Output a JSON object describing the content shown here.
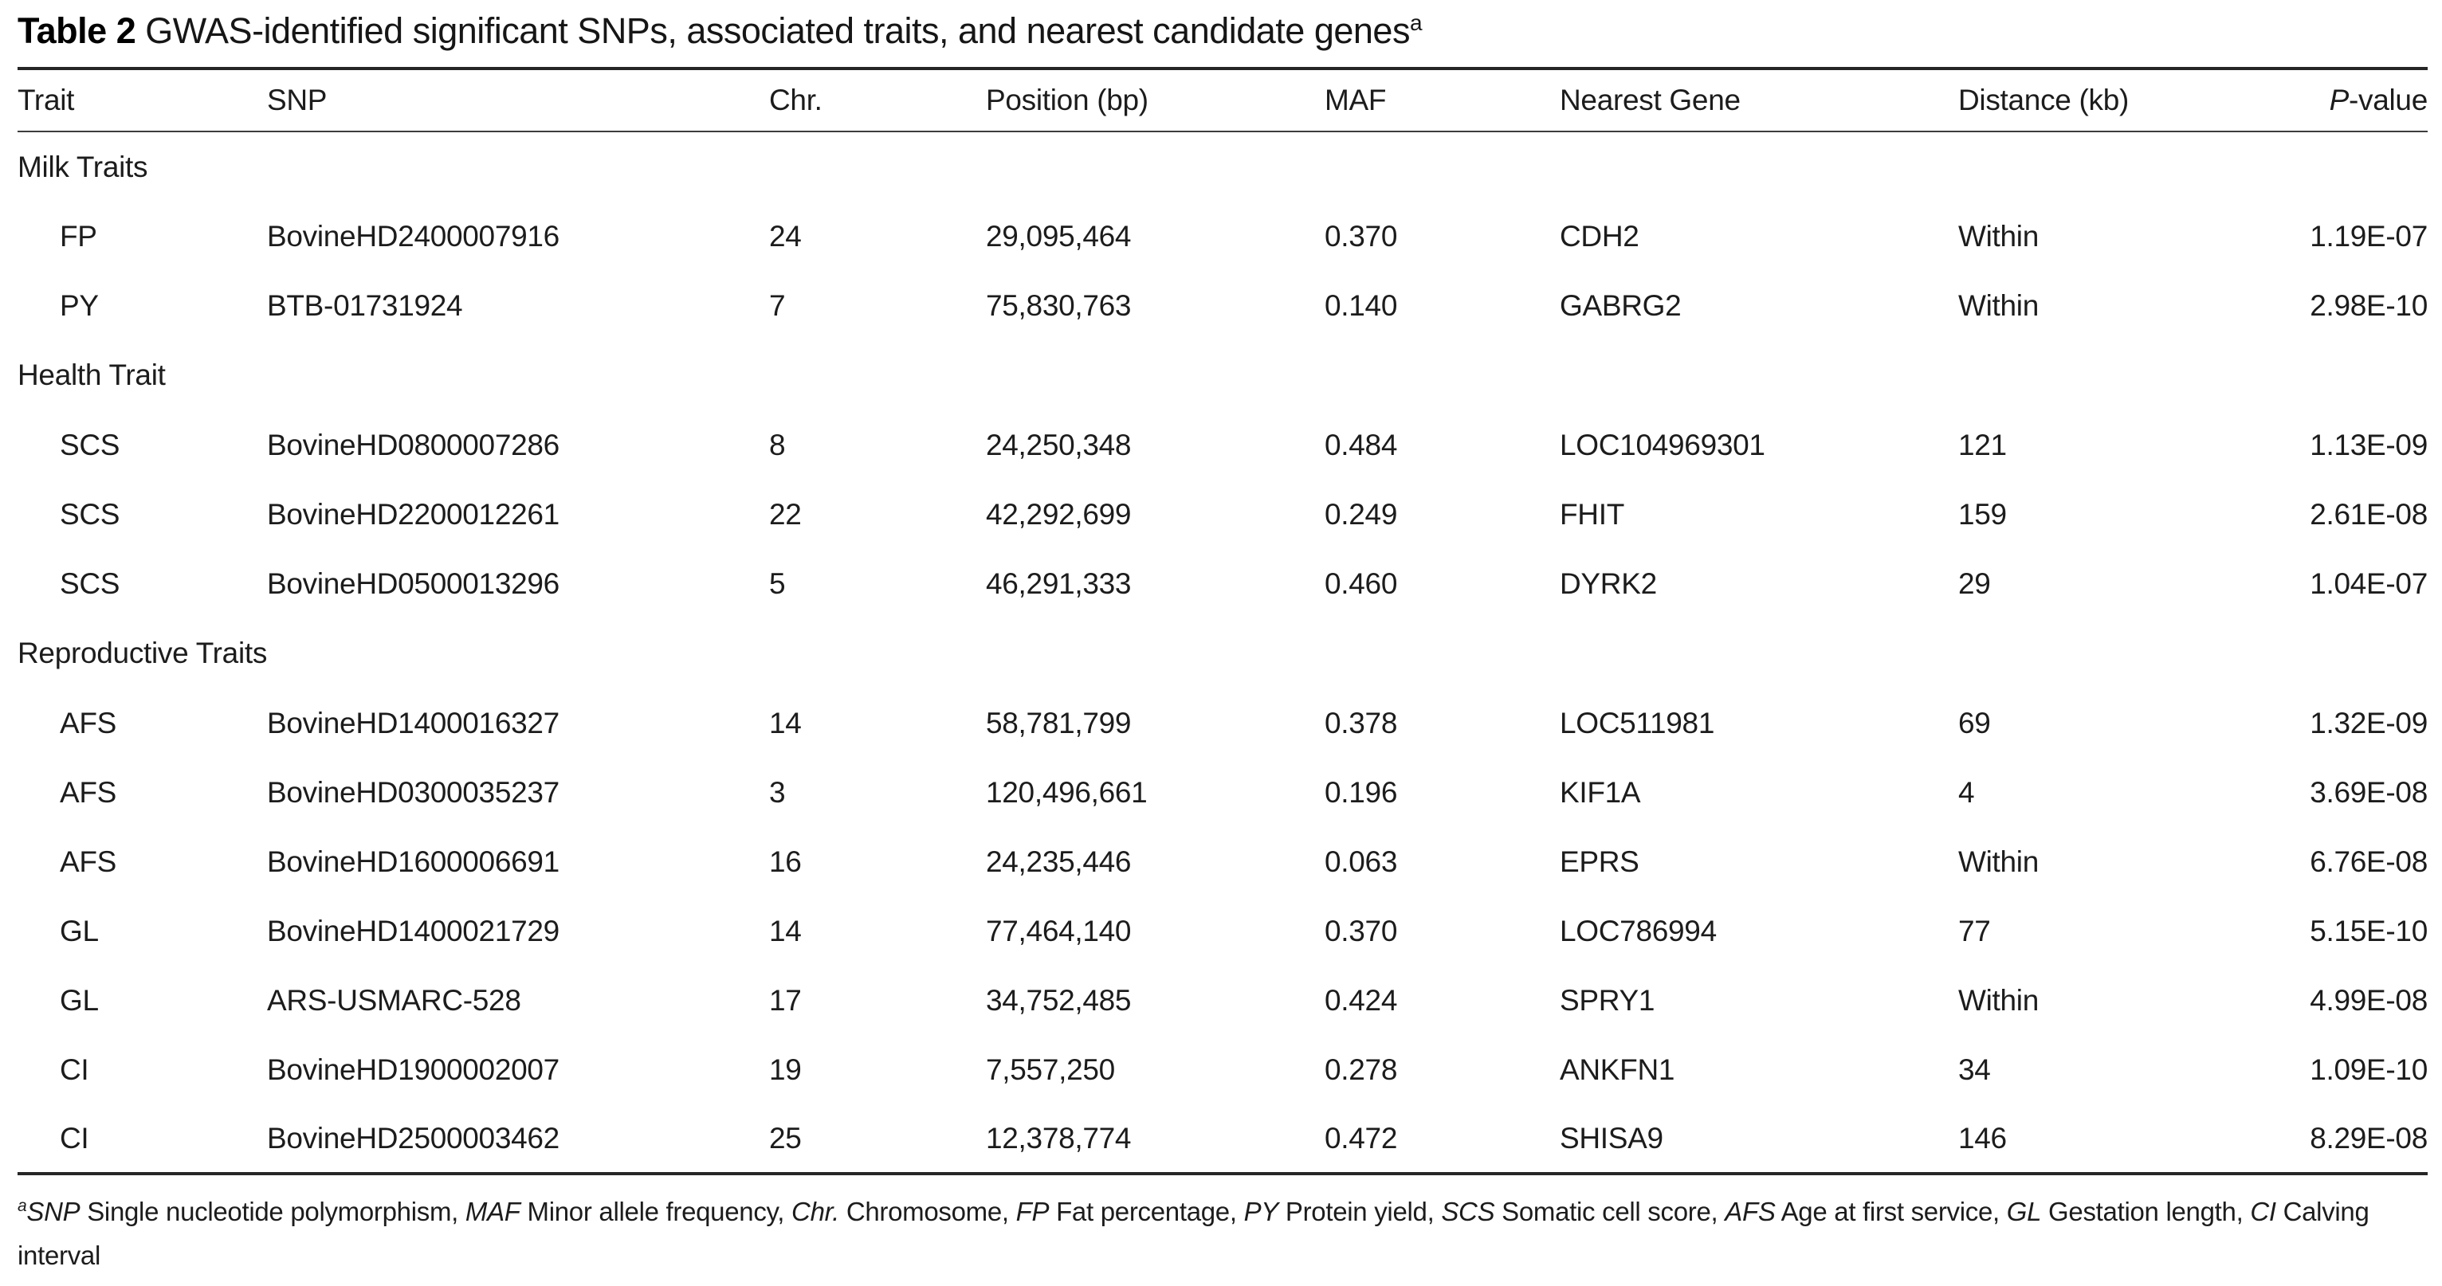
{
  "title": {
    "label": "Table 2",
    "text": " GWAS-identified significant SNPs, associated traits, and nearest candidate genes",
    "superscript": "a"
  },
  "table": {
    "columns": [
      {
        "key": "trait",
        "label": "Trait"
      },
      {
        "key": "snp",
        "label": "SNP"
      },
      {
        "key": "chr",
        "label": "Chr."
      },
      {
        "key": "position",
        "label": "Position (bp)"
      },
      {
        "key": "maf",
        "label": "MAF"
      },
      {
        "key": "gene",
        "label": "Nearest Gene"
      },
      {
        "key": "distance",
        "label": "Distance (kb)"
      },
      {
        "key": "pvalue",
        "italic": "P",
        "label": "-value"
      }
    ],
    "sections": [
      {
        "label": "Milk Traits",
        "rows": [
          [
            "FP",
            "BovineHD2400007916",
            "24",
            "29,095,464",
            "0.370",
            "CDH2",
            "Within",
            "1.19E-07"
          ],
          [
            "PY",
            "BTB-01731924",
            "7",
            "75,830,763",
            "0.140",
            "GABRG2",
            "Within",
            "2.98E-10"
          ]
        ]
      },
      {
        "label": "Health Trait",
        "rows": [
          [
            "SCS",
            "BovineHD0800007286",
            "8",
            "24,250,348",
            "0.484",
            "LOC104969301",
            "121",
            "1.13E-09"
          ],
          [
            "SCS",
            "BovineHD2200012261",
            "22",
            "42,292,699",
            "0.249",
            "FHIT",
            "159",
            "2.61E-08"
          ],
          [
            "SCS",
            "BovineHD0500013296",
            "5",
            "46,291,333",
            "0.460",
            "DYRK2",
            "29",
            "1.04E-07"
          ]
        ]
      },
      {
        "label": "Reproductive Traits",
        "rows": [
          [
            "AFS",
            "BovineHD1400016327",
            "14",
            "58,781,799",
            "0.378",
            "LOC511981",
            "69",
            "1.32E-09"
          ],
          [
            "AFS",
            "BovineHD0300035237",
            "3",
            "120,496,661",
            "0.196",
            "KIF1A",
            "4",
            "3.69E-08"
          ],
          [
            "AFS",
            "BovineHD1600006691",
            "16",
            "24,235,446",
            "0.063",
            "EPRS",
            "Within",
            "6.76E-08"
          ],
          [
            "GL",
            "BovineHD1400021729",
            "14",
            "77,464,140",
            "0.370",
            "LOC786994",
            "77",
            "5.15E-10"
          ],
          [
            "GL",
            "ARS-USMARC-528",
            "17",
            "34,752,485",
            "0.424",
            "SPRY1",
            "Within",
            "4.99E-08"
          ],
          [
            "CI",
            "BovineHD1900002007",
            "19",
            "7,557,250",
            "0.278",
            "ANKFN1",
            "34",
            "1.09E-10"
          ],
          [
            "CI",
            "BovineHD2500003462",
            "25",
            "12,378,774",
            "0.472",
            "SHISA9",
            "146",
            "8.29E-08"
          ]
        ]
      }
    ]
  },
  "footnote": {
    "marker": "a",
    "segments": [
      {
        "t": "SNP",
        "i": 1
      },
      {
        "t": " Single nucleotide polymorphism, ",
        "i": 0
      },
      {
        "t": "MAF",
        "i": 1
      },
      {
        "t": " Minor allele frequency, ",
        "i": 0
      },
      {
        "t": "Chr.",
        "i": 1
      },
      {
        "t": " Chromosome, ",
        "i": 0
      },
      {
        "t": "FP",
        "i": 1
      },
      {
        "t": " Fat percentage, ",
        "i": 0
      },
      {
        "t": "PY",
        "i": 1
      },
      {
        "t": " Protein yield, ",
        "i": 0
      },
      {
        "t": "SCS",
        "i": 1
      },
      {
        "t": " Somatic cell score, ",
        "i": 0
      },
      {
        "t": "AFS",
        "i": 1
      },
      {
        "t": " Age at first service, ",
        "i": 0
      },
      {
        "t": "GL",
        "i": 1
      },
      {
        "t": " Gestation length, ",
        "i": 0
      },
      {
        "t": "CI",
        "i": 1
      },
      {
        "t": " Calving interval",
        "i": 0
      }
    ]
  }
}
